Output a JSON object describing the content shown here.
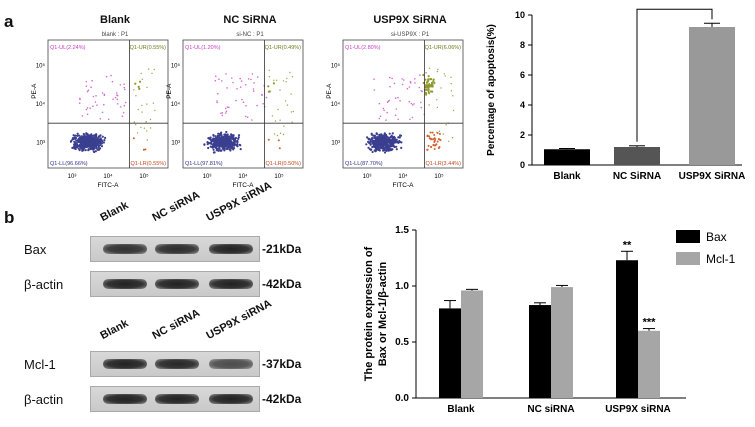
{
  "panel_a_label": "a",
  "panel_b_label": "b",
  "flow": [
    {
      "title": "Blank",
      "sample": "blank : P1",
      "ul": "Q1-UL(2.24%)",
      "ur": "Q1-UR(0.55%)",
      "ll": "Q1-LL(96.66%)",
      "lr": "Q1-LR(0.55%)",
      "apoptotic_points": 0.05
    },
    {
      "title": "NC SiRNA",
      "sample": "si-NC : P1",
      "ul": "Q1-UL(1.20%)",
      "ur": "Q1-UR(0.49%)",
      "ll": "Q1-LL(97.81%)",
      "lr": "Q1-LR(0.50%)",
      "apoptotic_points": 0.05
    },
    {
      "title": "USP9X SiRNA",
      "sample": "si-USP9X : P1",
      "ul": "Q1-UL(2.80%)",
      "ur": "Q1-UR(6.06%)",
      "ll": "Q1-LL(87.70%)",
      "lr": "Q1-LR(3.44%)",
      "apoptotic_points": 0.6
    }
  ],
  "flow_axes": {
    "x_label": "FITC-A",
    "y_label": "PE-A",
    "x_ticks": [
      "10³",
      "10⁴",
      "10⁵"
    ],
    "y_ticks": [
      "10³",
      "10⁴",
      "10⁵"
    ]
  },
  "blot": {
    "lanes": [
      "Blank",
      "NC siRNA",
      "USP9X siRNA"
    ],
    "rows": [
      {
        "label": "Bax",
        "kda": "-21kDa",
        "intensity": [
          0.85,
          0.9,
          1.0
        ]
      },
      {
        "label": "β-actin",
        "kda": "-42kDa",
        "intensity": [
          1.0,
          1.0,
          1.0
        ]
      },
      {
        "label": "Mcl-1",
        "kda": "-37kDa",
        "intensity": [
          1.0,
          0.95,
          0.6
        ]
      },
      {
        "label": "β-actin",
        "kda": "-42kDa",
        "intensity": [
          1.0,
          1.0,
          1.0
        ]
      }
    ]
  },
  "chart_data": [
    {
      "type": "bar",
      "categories": [
        "Blank",
        "NC SiRNA",
        "USP9X SiRNA"
      ],
      "values": [
        1.05,
        1.2,
        9.2
      ],
      "errors": [
        0.05,
        0.08,
        0.25
      ],
      "colors": [
        "#000000",
        "#555555",
        "#999999"
      ],
      "ylabel": "Percentage of apoptosis(%)",
      "ylim": [
        0,
        10
      ],
      "yticks": [
        0,
        2,
        4,
        6,
        8,
        10
      ],
      "annotation": "***",
      "grid": false
    },
    {
      "type": "bar",
      "categories": [
        "Blank",
        "NC siRNA",
        "USP9X siRNA"
      ],
      "series": [
        {
          "name": "Bax",
          "values": [
            0.8,
            0.83,
            1.23
          ],
          "errors": [
            0.07,
            0.02,
            0.08
          ],
          "color": "#000000",
          "marks": [
            "",
            "",
            "**"
          ]
        },
        {
          "name": "Mcl-1",
          "values": [
            0.96,
            0.99,
            0.6
          ],
          "errors": [
            0.01,
            0.015,
            0.02
          ],
          "color": "#a6a6a6",
          "marks": [
            "",
            "",
            "***"
          ]
        }
      ],
      "ylabel": "The protein expression of\nBax or Mcl-1/β-actin",
      "ylim": [
        0,
        1.5
      ],
      "yticks": [
        "0.0",
        "0.5",
        "1.0",
        "1.5"
      ],
      "legend": "top-right",
      "grid": false
    }
  ]
}
